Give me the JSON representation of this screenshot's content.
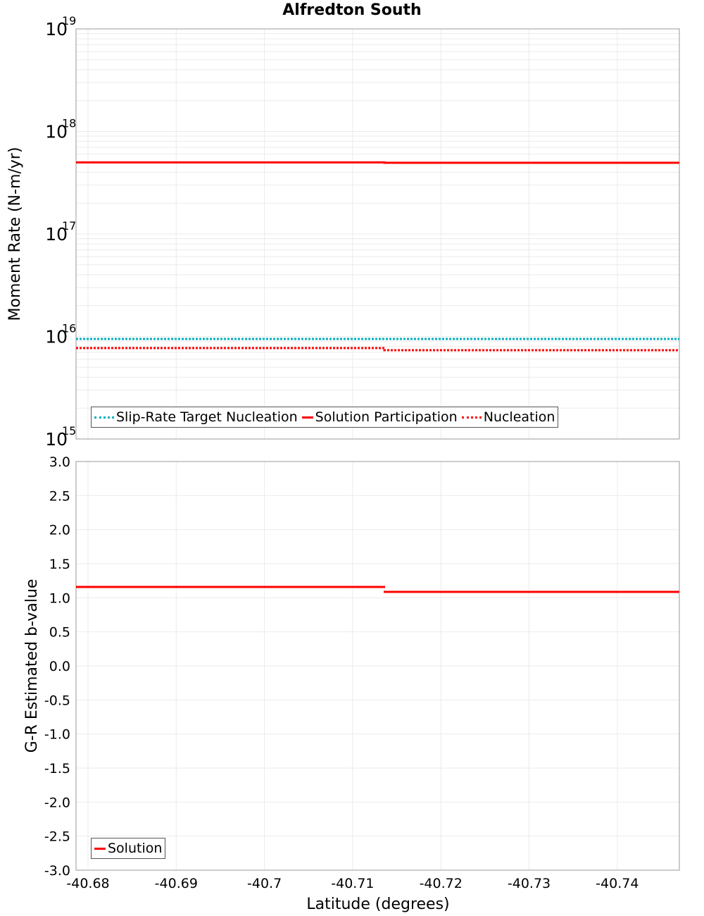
{
  "title": "Alfredton South",
  "chart_data": [
    {
      "type": "line",
      "title": "Alfredton South",
      "xlabel": "Latitude (degrees)",
      "ylabel": "Moment Rate (N-m/yr)",
      "yscale": "log",
      "ylim": [
        1000000000000000.0,
        1e+19
      ],
      "xlim": [
        -40.6787,
        -40.7466
      ],
      "x_ticks": [
        "-40.68",
        "-40.69",
        "-40.7",
        "-40.71",
        "-40.72",
        "-40.73",
        "-40.74"
      ],
      "y_ticks": [
        "10^15",
        "10^16",
        "10^17",
        "10^18",
        "10^19"
      ],
      "grid": true,
      "legend_position": "lower-left",
      "series": [
        {
          "name": "Slip-Rate Target Nucleation",
          "style": "dotted",
          "color": "#00b0c0",
          "x": [
            -40.6787,
            -40.7135,
            -40.7466
          ],
          "values": [
            9400000000000000.0,
            9400000000000000.0,
            9400000000000000.0
          ]
        },
        {
          "name": "Solution Participation",
          "style": "solid",
          "color": "#ff0000",
          "x": [
            -40.6787,
            -40.7135,
            -40.7466
          ],
          "values": [
            5e+17,
            4.9e+17,
            4.9e+17
          ]
        },
        {
          "name": "Nucleation",
          "style": "dotted",
          "color": "#ff0000",
          "x": [
            -40.6787,
            -40.7135,
            -40.7466
          ],
          "values": [
            7600000000000000.0,
            7300000000000000.0,
            7300000000000000.0
          ]
        }
      ]
    },
    {
      "type": "line",
      "xlabel": "Latitude (degrees)",
      "ylabel": "G-R Estimated b-value",
      "ylim": [
        -3.0,
        3.0
      ],
      "xlim": [
        -40.6787,
        -40.7466
      ],
      "x_ticks": [
        "-40.68",
        "-40.69",
        "-40.7",
        "-40.71",
        "-40.72",
        "-40.73",
        "-40.74"
      ],
      "y_ticks": [
        "3.0",
        "2.5",
        "2.0",
        "1.5",
        "1.0",
        "0.5",
        "0.0",
        "-0.5",
        "-1.0",
        "-1.5",
        "-2.0",
        "-2.5",
        "-3.0"
      ],
      "grid": true,
      "legend_position": "lower-left",
      "series": [
        {
          "name": "Solution",
          "style": "solid",
          "color": "#ff0000",
          "x": [
            -40.6787,
            -40.7135,
            -40.7466
          ],
          "values": [
            1.16,
            1.09,
            1.09
          ]
        }
      ]
    }
  ],
  "top": {
    "ylabel": "Moment Rate (N-m/yr)",
    "yticks": [
      {
        "base": "10",
        "exp": "19"
      },
      {
        "base": "10",
        "exp": "18"
      },
      {
        "base": "10",
        "exp": "17"
      },
      {
        "base": "10",
        "exp": "16"
      },
      {
        "base": "10",
        "exp": "15"
      }
    ],
    "legend": [
      "Slip-Rate Target Nucleation",
      "Solution Participation",
      "Nucleation"
    ]
  },
  "bottom": {
    "ylabel": "G-R Estimated b-value",
    "yticks": [
      "3.0",
      "2.5",
      "2.0",
      "1.5",
      "1.0",
      "0.5",
      "0.0",
      "-0.5",
      "-1.0",
      "-1.5",
      "-2.0",
      "-2.5",
      "-3.0"
    ],
    "legend": [
      "Solution"
    ]
  },
  "xaxis": {
    "label": "Latitude (degrees)",
    "ticks": [
      "-40.68",
      "-40.69",
      "-40.7",
      "-40.71",
      "-40.72",
      "-40.73",
      "-40.74"
    ]
  },
  "colors": {
    "red": "#ff0000",
    "cyan": "#00b0c0",
    "grid": "#ebebeb",
    "frame": "#aaaaaa"
  }
}
